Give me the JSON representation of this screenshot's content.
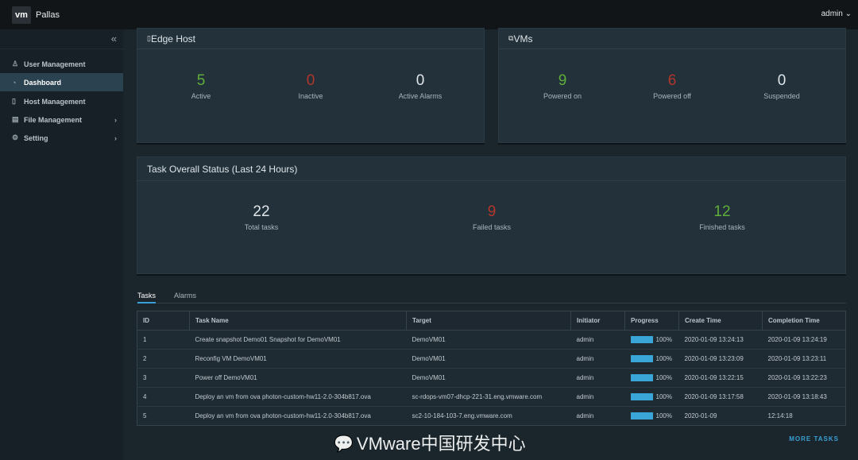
{
  "header": {
    "logo": "vm",
    "app": "Pallas",
    "user": "admin"
  },
  "sidebar": {
    "items": [
      {
        "label": "User Management",
        "icon": "user-icon"
      },
      {
        "label": "Dashboard",
        "icon": "dashboard-icon",
        "active": true
      },
      {
        "label": "Host Management",
        "icon": "host-icon"
      },
      {
        "label": "File Management",
        "icon": "file-icon",
        "submenu": true
      },
      {
        "label": "Setting",
        "icon": "gear-icon",
        "submenu": true
      }
    ]
  },
  "edge": {
    "title": "Edge Host",
    "stats": [
      {
        "value": "5",
        "label": "Active"
      },
      {
        "value": "0",
        "label": "Inactive"
      },
      {
        "value": "0",
        "label": "Active Alarms"
      }
    ]
  },
  "vms": {
    "title": "VMs",
    "stats": [
      {
        "value": "9",
        "label": "Powered on"
      },
      {
        "value": "6",
        "label": "Powered off"
      },
      {
        "value": "0",
        "label": "Suspended"
      }
    ]
  },
  "tasks_status": {
    "title": "Task Overall Status (Last 24 Hours)",
    "stats": [
      {
        "value": "22",
        "label": "Total tasks"
      },
      {
        "value": "9",
        "label": "Failed tasks"
      },
      {
        "value": "12",
        "label": "Finished tasks"
      }
    ]
  },
  "tabs": [
    "Tasks",
    "Alarms"
  ],
  "table": {
    "columns": [
      "ID",
      "Task Name",
      "Target",
      "Initiator",
      "Progress",
      "Create Time",
      "Completion Time"
    ],
    "rows": [
      [
        "1",
        "Create snapshot Demo01 Snapshot for DemoVM01",
        "DemoVM01",
        "admin",
        "100%",
        "2020-01-09 13:24:13",
        "2020-01-09 13:24:19"
      ],
      [
        "2",
        "Reconfig VM DemoVM01",
        "DemoVM01",
        "admin",
        "100%",
        "2020-01-09 13:23:09",
        "2020-01-09 13:23:11"
      ],
      [
        "3",
        "Power off DemoVM01",
        "DemoVM01",
        "admin",
        "100%",
        "2020-01-09 13:22:15",
        "2020-01-09 13:22:23"
      ],
      [
        "4",
        "Deploy an vm from ova photon-custom-hw11-2.0-304b817.ova",
        "sc-rdops-vm07-dhcp-221-31.eng.vmware.com",
        "admin",
        "100%",
        "2020-01-09 13:17:58",
        "2020-01-09 13:18:43"
      ],
      [
        "5",
        "Deploy an vm from ova photon-custom-hw11-2.0-304b817.ova",
        "sc2-10-184-103-7.eng.vmware.com",
        "admin",
        "100%",
        "2020-01-09",
        "12:14:18"
      ]
    ]
  },
  "more_tasks": "MORE TASKS",
  "watermark": "VMware中国研发中心",
  "colors": {
    "green": "#5fae3a",
    "red": "#b2362b",
    "accent": "#3a9fd5"
  }
}
